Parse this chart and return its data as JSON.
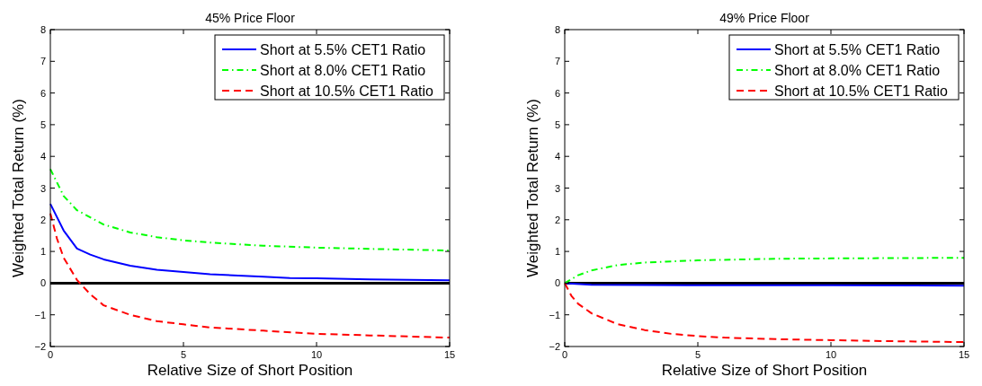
{
  "chart_data": [
    {
      "type": "line",
      "title": "45% Price Floor",
      "xlabel": "Relative Size of Short Position",
      "ylabel": "Weighted Total Return (%)",
      "xlim": [
        0,
        15
      ],
      "xticks": [
        0,
        5,
        10,
        15
      ],
      "ylim": [
        -2,
        8
      ],
      "yticks": [
        -2,
        -1,
        0,
        1,
        2,
        3,
        4,
        5,
        6,
        7,
        8
      ],
      "legend": "top right",
      "grid": false,
      "ref_lines": [
        {
          "axis": "y",
          "value": 0,
          "color": "#000000"
        }
      ],
      "series": [
        {
          "name": "Short at 5.5% CET1 Ratio",
          "color": "#0000ff",
          "line_style": "solid",
          "x": [
            0,
            0.5,
            1,
            1.5,
            2,
            3,
            4,
            5,
            6,
            8,
            9,
            10,
            12,
            15
          ],
          "values": [
            2.5,
            1.66,
            1.09,
            0.9,
            0.75,
            0.55,
            0.42,
            0.35,
            0.28,
            0.2,
            0.16,
            0.15,
            0.12,
            0.09
          ]
        },
        {
          "name": "Short at 8.0% CET1 Ratio",
          "color": "#00ff00",
          "line_style": "dotted",
          "x": [
            0,
            0.5,
            1,
            2,
            3,
            4,
            5,
            6,
            8,
            10,
            12,
            15
          ],
          "values": [
            3.6,
            2.75,
            2.3,
            1.85,
            1.6,
            1.45,
            1.35,
            1.28,
            1.18,
            1.12,
            1.08,
            1.03
          ]
        },
        {
          "name": "Short at 10.5% CET1 Ratio",
          "color": "#ff0000",
          "line_style": "dashed",
          "x": [
            0,
            0.25,
            0.5,
            1,
            1.5,
            2,
            3,
            4,
            5,
            6,
            8,
            10,
            12,
            15
          ],
          "values": [
            2.2,
            1.4,
            0.8,
            0.1,
            -0.35,
            -0.7,
            -1.0,
            -1.2,
            -1.3,
            -1.4,
            -1.5,
            -1.6,
            -1.65,
            -1.72
          ]
        }
      ]
    },
    {
      "type": "line",
      "title": "49% Price Floor",
      "xlabel": "Relative Size of Short Position",
      "ylabel": "Weighted Total Return (%)",
      "xlim": [
        0,
        15
      ],
      "xticks": [
        0,
        5,
        10,
        15
      ],
      "ylim": [
        -2,
        8
      ],
      "yticks": [
        -2,
        -1,
        0,
        1,
        2,
        3,
        4,
        5,
        6,
        7,
        8
      ],
      "legend": "top right",
      "grid": false,
      "ref_lines": [
        {
          "axis": "y",
          "value": 0,
          "color": "#000000"
        }
      ],
      "series": [
        {
          "name": "Short at 5.5% CET1 Ratio",
          "color": "#0000ff",
          "line_style": "solid",
          "x": [
            0,
            1,
            5,
            10,
            15
          ],
          "values": [
            0,
            -0.05,
            -0.07,
            -0.07,
            -0.08
          ]
        },
        {
          "name": "Short at 8.0% CET1 Ratio",
          "color": "#00ff00",
          "line_style": "dotted",
          "x": [
            0,
            0.5,
            1,
            2,
            3,
            5,
            8,
            10,
            15
          ],
          "values": [
            0,
            0.25,
            0.4,
            0.57,
            0.65,
            0.72,
            0.77,
            0.78,
            0.8
          ]
        },
        {
          "name": "Short at 10.5% CET1 Ratio",
          "color": "#ff0000",
          "line_style": "dashed",
          "x": [
            0,
            0.25,
            0.5,
            1,
            2,
            3,
            4,
            5,
            6,
            8,
            10,
            12,
            15
          ],
          "values": [
            0,
            -0.4,
            -0.65,
            -0.95,
            -1.3,
            -1.48,
            -1.6,
            -1.67,
            -1.72,
            -1.77,
            -1.8,
            -1.83,
            -1.86
          ]
        }
      ]
    }
  ]
}
